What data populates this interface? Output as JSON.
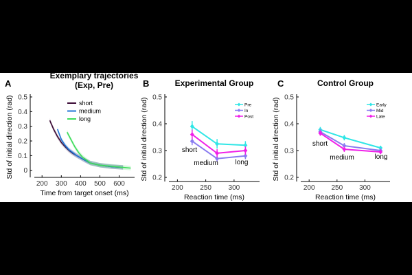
{
  "chart_data": [
    {
      "type": "line",
      "panel_label": "A",
      "title": "Exemplary trajectories",
      "subtitle": "(Exp, Pre)",
      "xlabel": "Time from target onset (ms)",
      "ylabel": "Std of initial direction (rad)",
      "xlim": [
        160,
        680
      ],
      "ylim": [
        -0.02,
        0.5
      ],
      "xticks": [
        200,
        300,
        400,
        500,
        600
      ],
      "yticks": [
        0,
        0.1,
        0.2,
        0.3,
        0.4,
        0.5
      ],
      "ytick_labels": [
        "0",
        "0.1",
        "0.2",
        "0.3",
        "0.4",
        "0.5"
      ],
      "legend_position": "top-right",
      "series": [
        {
          "name": "short",
          "color": "#3b0a35",
          "x": [
            240,
            260,
            280,
            300,
            320,
            340,
            360,
            380,
            400,
            420,
            450,
            500,
            560,
            620
          ],
          "y": [
            0.34,
            0.28,
            0.23,
            0.19,
            0.16,
            0.135,
            0.115,
            0.1,
            0.085,
            0.07,
            0.05,
            0.035,
            0.025,
            0.02
          ]
        },
        {
          "name": "medium",
          "color": "#1e73d6",
          "x": [
            280,
            300,
            320,
            340,
            360,
            380,
            400,
            420,
            450,
            500,
            560,
            620
          ],
          "y": [
            0.28,
            0.21,
            0.17,
            0.14,
            0.12,
            0.1,
            0.085,
            0.07,
            0.05,
            0.035,
            0.025,
            0.02
          ]
        },
        {
          "name": "long",
          "color": "#3ddc5a",
          "x": [
            330,
            350,
            370,
            390,
            410,
            430,
            450,
            500,
            560,
            620,
            660
          ],
          "y": [
            0.26,
            0.21,
            0.16,
            0.12,
            0.09,
            0.07,
            0.05,
            0.035,
            0.028,
            0.02,
            0.015
          ]
        }
      ]
    },
    {
      "type": "line",
      "panel_label": "B",
      "title": "Experimental Group",
      "xlabel": "Reaction time (ms)",
      "ylabel": "Std of initial direction (rad)",
      "xlim": [
        185,
        345
      ],
      "ylim": [
        0.2,
        0.5
      ],
      "xticks": [
        200,
        250,
        300
      ],
      "yticks": [
        0.2,
        0.3,
        0.4,
        0.5
      ],
      "ytick_labels": [
        "0.2",
        "0.3",
        "0.4",
        "0.5"
      ],
      "categories": [
        "short",
        "medium",
        "long"
      ],
      "legend_position": "top-right",
      "series": [
        {
          "name": "Pre",
          "color": "#2fe6e6",
          "x": [
            226,
            270,
            320
          ],
          "y": [
            0.39,
            0.325,
            0.32
          ],
          "err": [
            0.02,
            0.018,
            0.015
          ]
        },
        {
          "name": "In",
          "color": "#8a7cf0",
          "x": [
            226,
            270,
            320
          ],
          "y": [
            0.335,
            0.27,
            0.28
          ],
          "err": [
            0.015,
            0.012,
            0.012
          ]
        },
        {
          "name": "Post",
          "color": "#f020e8",
          "x": [
            226,
            270,
            320
          ],
          "y": [
            0.36,
            0.29,
            0.3
          ],
          "err": [
            0.018,
            0.015,
            0.015
          ]
        }
      ]
    },
    {
      "type": "line",
      "panel_label": "C",
      "title": "Control Group",
      "xlabel": "Reaction time (ms)",
      "ylabel": "Std of initial direction (rad)",
      "xlim": [
        185,
        345
      ],
      "ylim": [
        0.2,
        0.5
      ],
      "xticks": [
        200,
        250,
        300
      ],
      "yticks": [
        0.2,
        0.3,
        0.4,
        0.5
      ],
      "ytick_labels": [
        "0.2",
        "0.3",
        "0.4",
        "0.5"
      ],
      "categories": [
        "short",
        "medium",
        "long"
      ],
      "legend_position": "top-right",
      "series": [
        {
          "name": "Early",
          "color": "#2fe6e6",
          "x": [
            220,
            263,
            328
          ],
          "y": [
            0.378,
            0.348,
            0.31
          ],
          "err": [
            0.01,
            0.01,
            0.008
          ]
        },
        {
          "name": "Mid",
          "color": "#8a7cf0",
          "x": [
            220,
            263,
            328
          ],
          "y": [
            0.37,
            0.318,
            0.3
          ],
          "err": [
            0.01,
            0.01,
            0.008
          ]
        },
        {
          "name": "Late",
          "color": "#f020e8",
          "x": [
            220,
            263,
            328
          ],
          "y": [
            0.365,
            0.305,
            0.295
          ],
          "err": [
            0.01,
            0.01,
            0.008
          ]
        }
      ]
    }
  ]
}
